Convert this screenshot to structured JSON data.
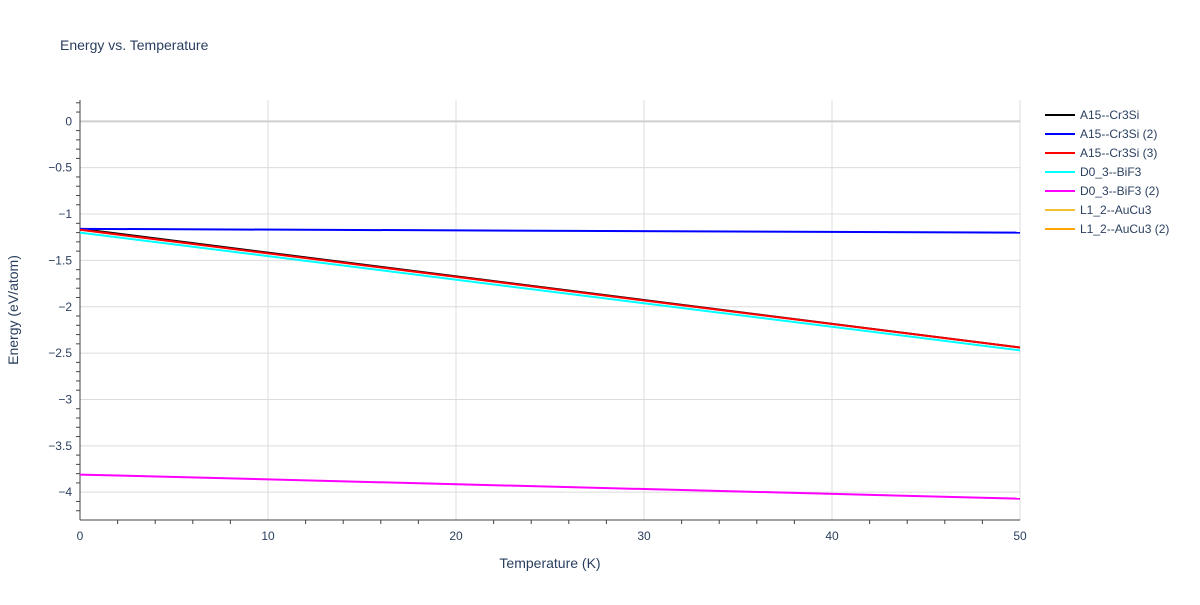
{
  "chart_data": {
    "type": "line",
    "title": "Energy vs. Temperature",
    "xlabel": "Temperature (K)",
    "ylabel": "Energy (eV/atom)",
    "xlim": [
      0,
      50
    ],
    "ylim": [
      -4.3,
      0.23
    ],
    "xticks": [
      0,
      10,
      20,
      30,
      40,
      50
    ],
    "xtick_labels": [
      "0",
      "10",
      "20",
      "30",
      "40",
      "50"
    ],
    "yticks": [
      0,
      -0.5,
      -1,
      -1.5,
      -2,
      -2.5,
      -3,
      -3.5,
      -4
    ],
    "ytick_labels": [
      "0",
      "−0.5",
      "−1",
      "−1.5",
      "−2",
      "−2.5",
      "−3",
      "−3.5",
      "−4"
    ],
    "grid": true,
    "legend_position": "top-right-outside",
    "series": [
      {
        "name": "A15--Cr3Si",
        "color": "#000000",
        "x": [
          0,
          50
        ],
        "y": [
          -1.16,
          -2.44
        ]
      },
      {
        "name": "A15--Cr3Si (2)",
        "color": "#0000ff",
        "x": [
          0,
          50
        ],
        "y": [
          -1.16,
          -1.2
        ]
      },
      {
        "name": "A15--Cr3Si (3)",
        "color": "#ff0000",
        "x": [
          0,
          50
        ],
        "y": [
          -1.17,
          -2.44
        ]
      },
      {
        "name": "D0_3--BiF3",
        "color": "#00ffff",
        "x": [
          0,
          50
        ],
        "y": [
          -1.2,
          -2.47
        ]
      },
      {
        "name": "D0_3--BiF3 (2)",
        "color": "#ff00ff",
        "x": [
          0,
          50
        ],
        "y": [
          -3.81,
          -4.07
        ]
      },
      {
        "name": "L1_2--AuCu3",
        "color": "#f0c030",
        "x": [],
        "y": []
      },
      {
        "name": "L1_2--AuCu3 (2)",
        "color": "#ffa500",
        "x": [],
        "y": []
      }
    ]
  }
}
